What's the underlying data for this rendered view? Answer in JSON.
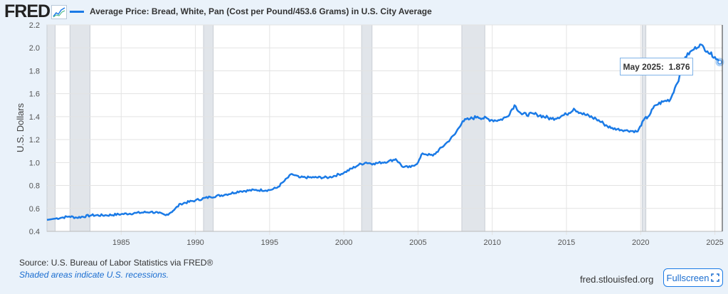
{
  "header": {
    "logo": "FRED",
    "series_label": "Average Price: Bread, White, Pan (Cost per Pound/453.6 Grams) in U.S. City Average",
    "line_color": "#1a7ae6"
  },
  "tooltip": {
    "label": "May 2025:",
    "value": "1.876"
  },
  "footer": {
    "source": "Source: U.S. Bureau of Labor Statistics via FRED®",
    "note": "Shaded areas indicate U.S. recessions.",
    "site": "fred.stlouisfed.org",
    "fullscreen": "Fullscreen"
  },
  "chart_data": {
    "type": "line",
    "title": "Average Price: Bread, White, Pan (Cost per Pound/453.6 Grams) in U.S. City Average",
    "xlabel": "",
    "ylabel": "U.S. Dollars",
    "xlim": [
      1980.0,
      2025.5
    ],
    "ylim": [
      0.4,
      2.2
    ],
    "yticks": [
      "0.4",
      "0.6",
      "0.8",
      "1.0",
      "1.2",
      "1.4",
      "1.6",
      "1.8",
      "2.0",
      "2.2"
    ],
    "xticks": [
      "1985",
      "1990",
      "1995",
      "2000",
      "2005",
      "2010",
      "2015",
      "2020",
      "2025"
    ],
    "recessions": [
      [
        1980.0,
        1980.55
      ],
      [
        1981.55,
        1982.9
      ],
      [
        1990.55,
        1991.2
      ],
      [
        2001.2,
        2001.9
      ],
      [
        2007.95,
        2009.5
      ],
      [
        2020.1,
        2020.35
      ]
    ],
    "x": [
      1980.0,
      1980.5,
      1981,
      1981.5,
      1982,
      1983,
      1984,
      1985,
      1986,
      1987,
      1987.5,
      1988,
      1988.5,
      1989,
      1990,
      1991,
      1992,
      1993,
      1994,
      1995,
      1995.5,
      1996,
      1996.5,
      1997,
      1998,
      1999,
      2000,
      2001,
      2001.5,
      2002,
      2003,
      2003.5,
      2004,
      2004.5,
      2005,
      2005.3,
      2006,
      2007,
      2007.5,
      2008,
      2008.5,
      2009,
      2010,
      2010.5,
      2011,
      2011.5,
      2012,
      2013,
      2014,
      2015,
      2015.5,
      2016,
      2017,
      2017.5,
      2018,
      2019,
      2019.8,
      2020.2,
      2020.5,
      2021,
      2021.5,
      2022,
      2022.3,
      2022.8,
      2023,
      2023.5,
      2024,
      2024.5,
      2025,
      2025.33
    ],
    "values": [
      0.5,
      0.51,
      0.52,
      0.53,
      0.52,
      0.54,
      0.54,
      0.55,
      0.56,
      0.57,
      0.56,
      0.54,
      0.58,
      0.64,
      0.67,
      0.7,
      0.72,
      0.75,
      0.76,
      0.76,
      0.78,
      0.84,
      0.9,
      0.87,
      0.87,
      0.87,
      0.91,
      0.98,
      1.0,
      0.99,
      1.01,
      1.03,
      0.96,
      0.96,
      1.0,
      1.08,
      1.06,
      1.18,
      1.25,
      1.36,
      1.38,
      1.4,
      1.37,
      1.37,
      1.4,
      1.5,
      1.42,
      1.42,
      1.38,
      1.42,
      1.47,
      1.43,
      1.38,
      1.34,
      1.3,
      1.28,
      1.27,
      1.37,
      1.4,
      1.5,
      1.53,
      1.55,
      1.65,
      1.8,
      1.92,
      1.98,
      2.03,
      1.97,
      1.92,
      1.876
    ]
  }
}
